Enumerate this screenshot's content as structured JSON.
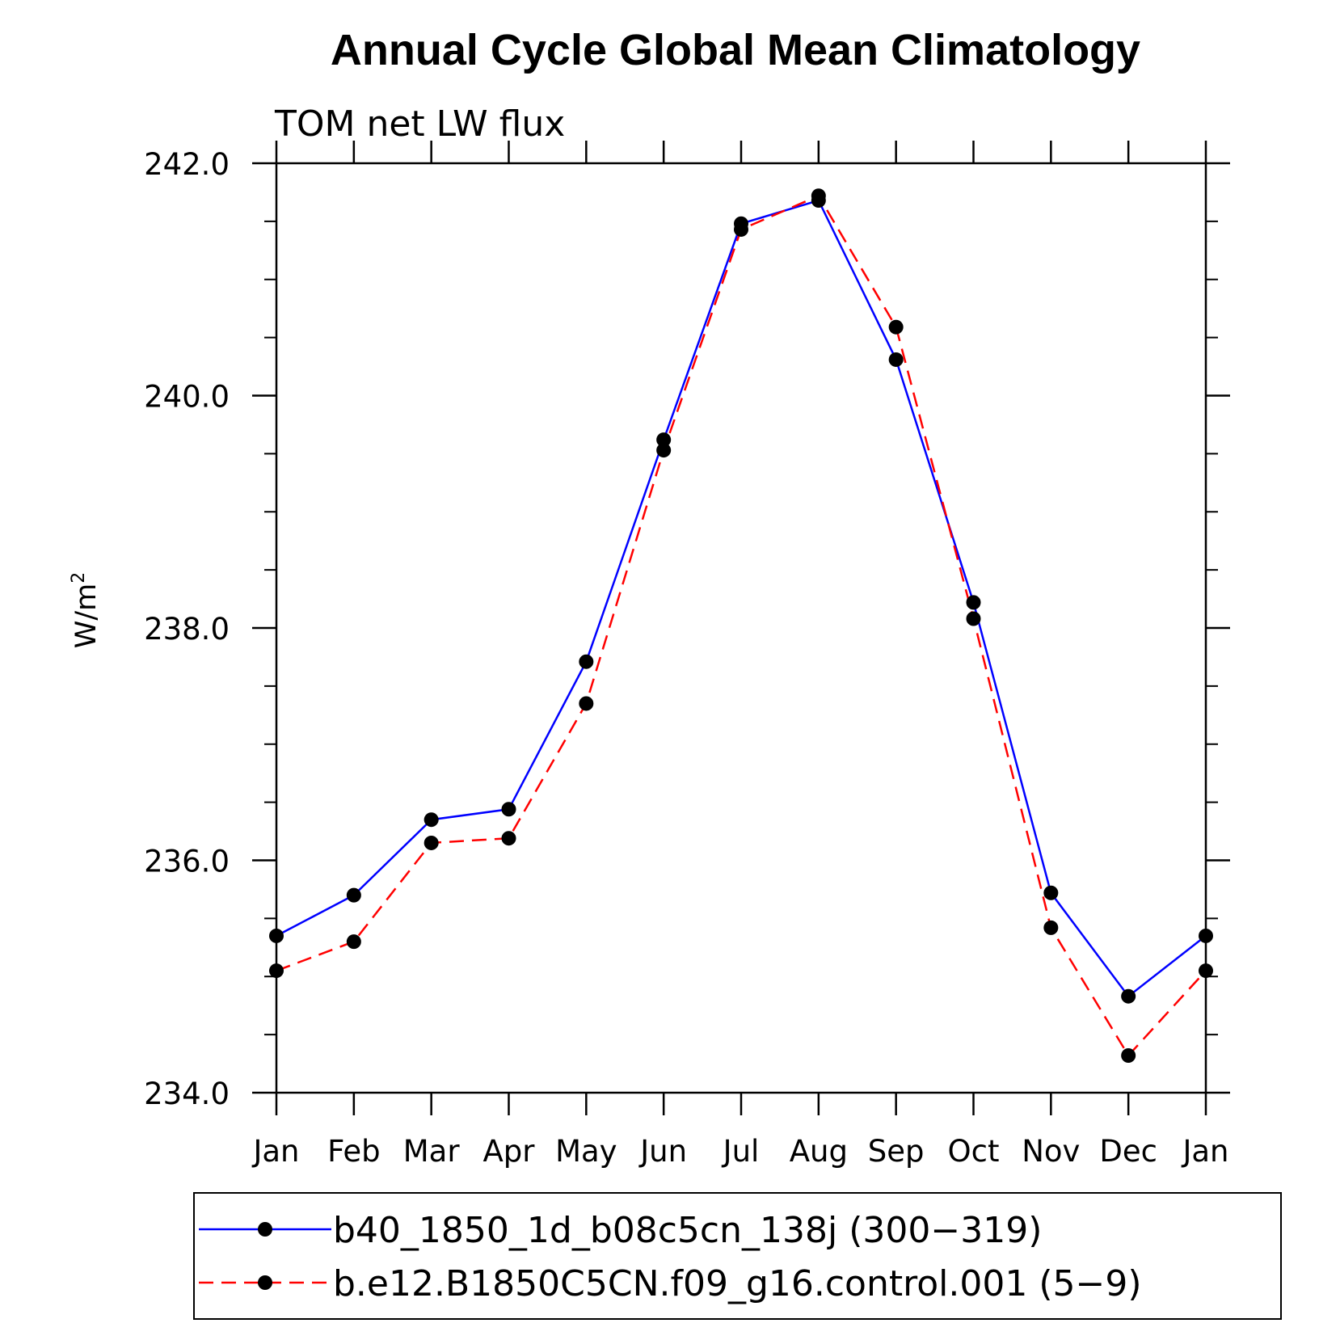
{
  "chart_data": {
    "type": "line",
    "title": "Annual Cycle Global Mean Climatology",
    "subtitle": "TOM net LW flux",
    "xlabel": "",
    "ylabel": "W/m",
    "ylabel_superscript": "2",
    "categories": [
      "Jan",
      "Feb",
      "Mar",
      "Apr",
      "May",
      "Jun",
      "Jul",
      "Aug",
      "Sep",
      "Oct",
      "Nov",
      "Dec",
      "Jan"
    ],
    "ylim": [
      234.0,
      242.0
    ],
    "yticks": [
      234.0,
      236.0,
      238.0,
      240.0,
      242.0
    ],
    "ytick_labels": [
      "234.0",
      "236.0",
      "238.0",
      "240.0",
      "242.0"
    ],
    "grid": false,
    "legend_position": "bottom",
    "series": [
      {
        "name": "b40_1850_1d_b08c5cn_138j (300-319)",
        "legend_label": "b40_1850_1d_b08c5cn_138j (300−319)",
        "color": "#0000ff",
        "dash": "solid",
        "marker_color": "#000000",
        "values": [
          235.35,
          235.7,
          236.35,
          236.44,
          237.71,
          239.62,
          241.48,
          241.68,
          240.31,
          238.22,
          235.72,
          234.83,
          235.35
        ]
      },
      {
        "name": "b.e12.B1850C5CN.f09_g16.control.001 (5-9)",
        "legend_label": "b.e12.B1850C5CN.f09_g16.control.001 (5−9)",
        "color": "#ff0000",
        "dash": "dashed",
        "marker_color": "#000000",
        "values": [
          235.05,
          235.3,
          236.15,
          236.19,
          237.35,
          239.53,
          241.43,
          241.72,
          240.59,
          238.08,
          235.42,
          234.32,
          235.05
        ]
      }
    ]
  }
}
